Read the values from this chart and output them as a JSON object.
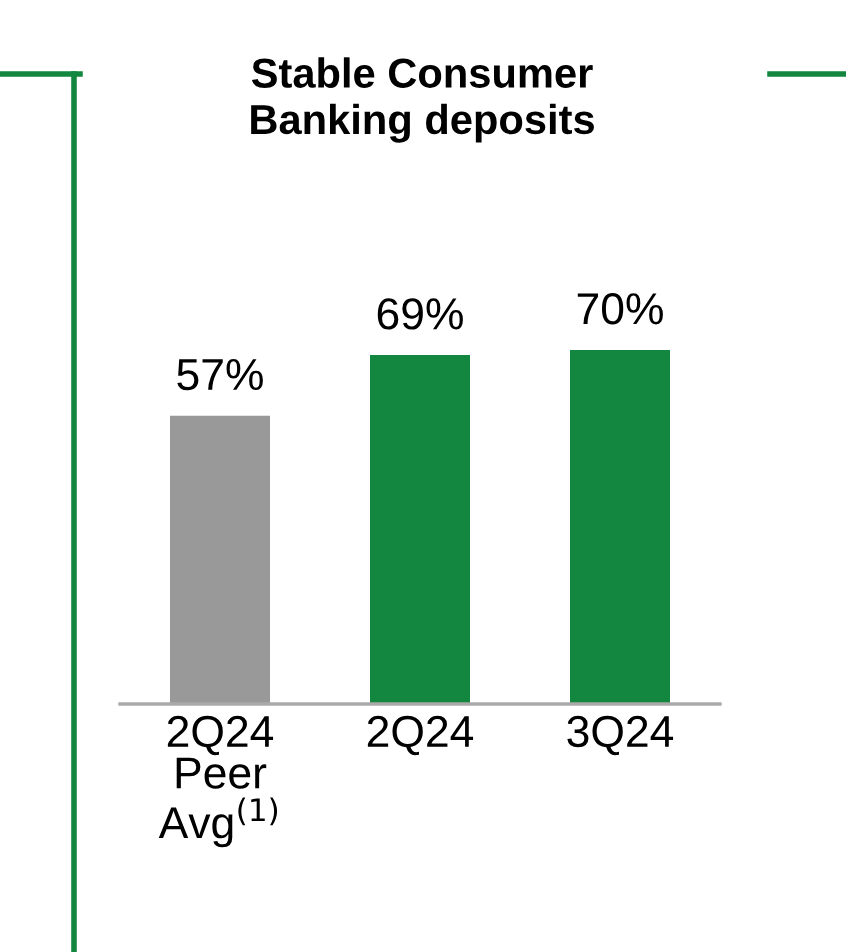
{
  "chart_data": {
    "type": "bar",
    "title": "Stable Consumer\nBanking deposits",
    "categories": [
      "2Q24\nPeer\nAvg$^{(1)}$",
      "2Q24",
      "3Q24"
    ],
    "values": [
      57,
      69,
      70
    ],
    "colors": [
      "#999999",
      "#13863f",
      "#13863f"
    ],
    "value_labels": [
      "57%",
      "69%",
      "70%"
    ]
  }
}
